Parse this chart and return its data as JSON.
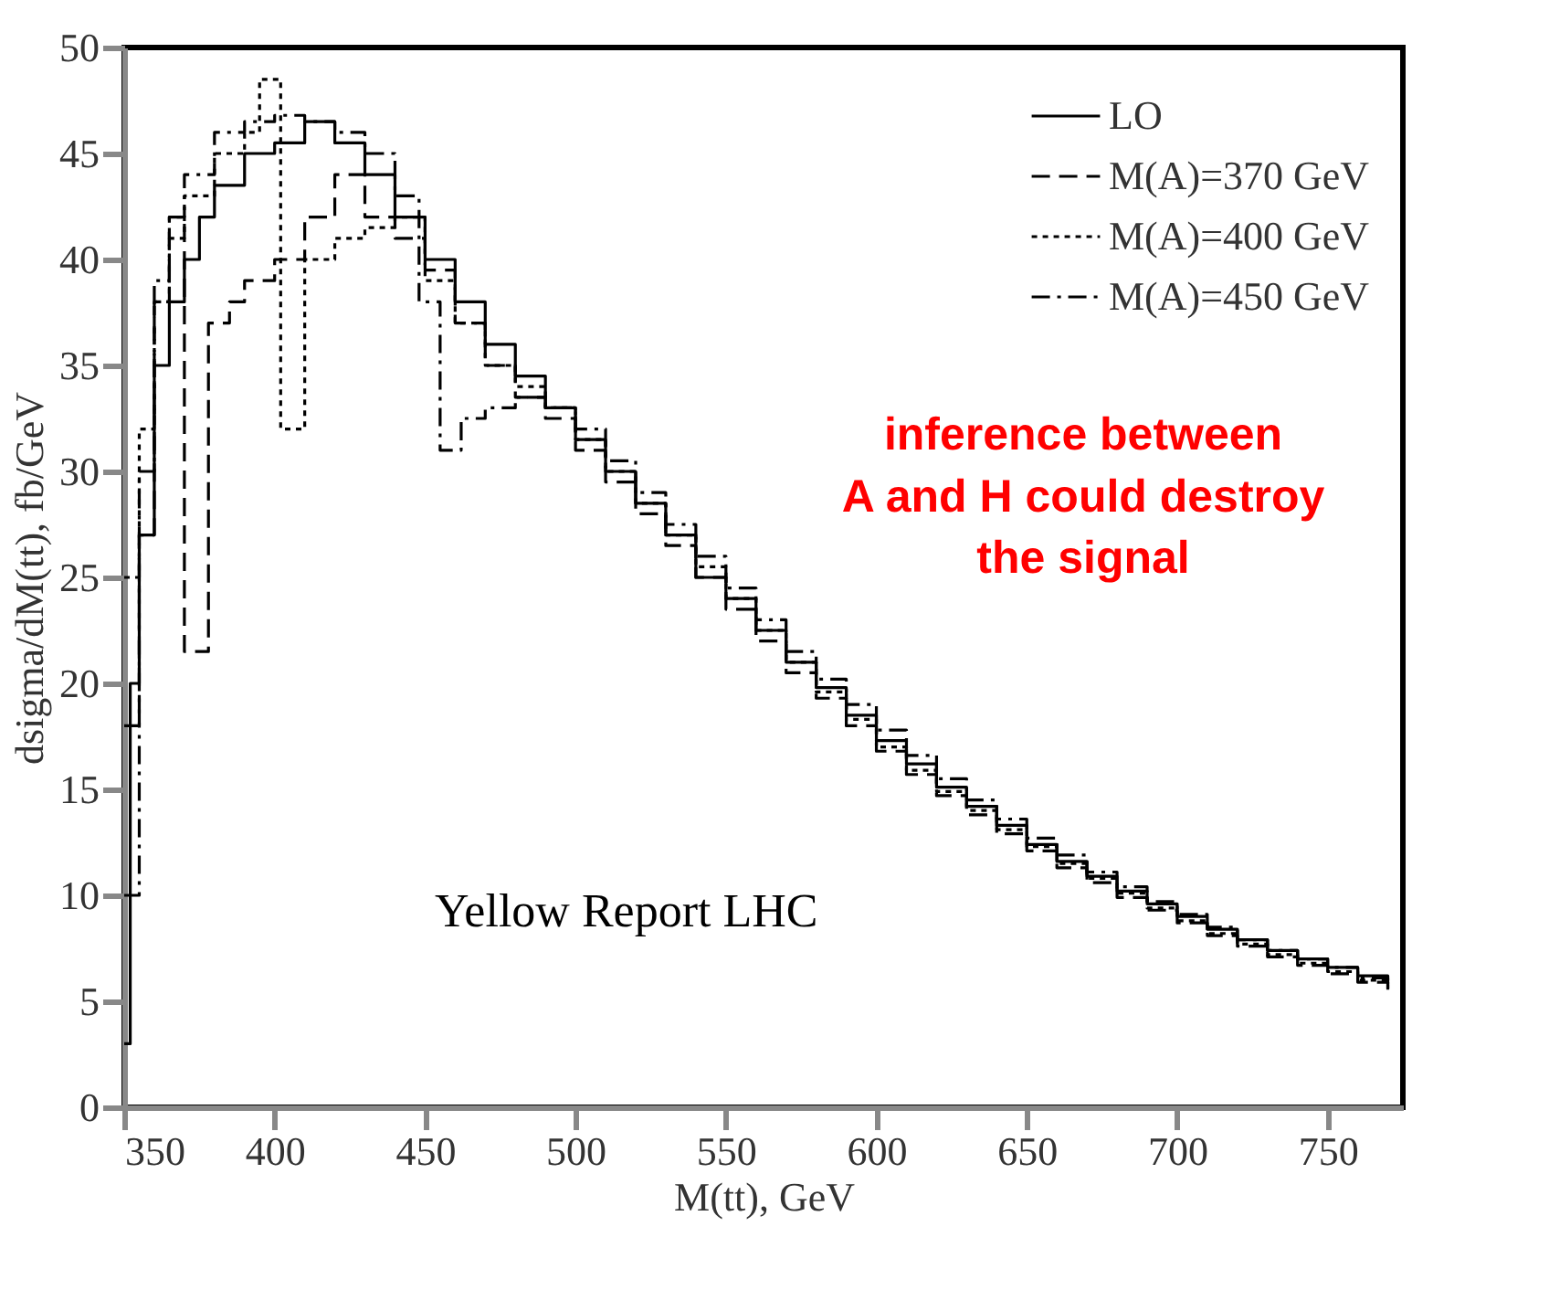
{
  "chart_data": {
    "type": "step",
    "xlabel": "M(tt), GeV",
    "ylabel": "dsigma/dM(tt), fb/GeV",
    "xlim": [
      350,
      775
    ],
    "ylim": [
      0,
      50
    ],
    "xticks": [
      350,
      400,
      450,
      500,
      550,
      600,
      650,
      700,
      750
    ],
    "yticks": [
      0,
      5,
      10,
      15,
      20,
      25,
      30,
      35,
      40,
      45,
      50
    ],
    "grid": false,
    "legend": "top right",
    "marker": "none",
    "annotations": [
      "inference between\nA and H could destroy\nthe signal",
      "Yellow Report LHC"
    ],
    "series": [
      {
        "name": "LO",
        "color": "#000000",
        "line_style": "solid",
        "x": [
          350,
          352,
          355,
          360,
          365,
          370,
          375,
          380,
          390,
          400,
          410,
          420,
          430,
          440,
          450,
          460,
          470,
          480,
          490,
          500,
          510,
          520,
          530,
          540,
          550,
          560,
          570,
          580,
          590,
          600,
          610,
          620,
          630,
          640,
          650,
          660,
          670,
          680,
          690,
          700,
          710,
          720,
          730,
          740,
          750,
          760,
          770
        ],
        "values": [
          3,
          20,
          27,
          35,
          38,
          40,
          42,
          43.5,
          45,
          45.5,
          46.5,
          45.5,
          44,
          42,
          40,
          38,
          36,
          34.5,
          33,
          31.5,
          30,
          28.5,
          27,
          25,
          24,
          22.5,
          21,
          19.8,
          18.5,
          17.3,
          16.2,
          15.1,
          14.2,
          13.3,
          12.4,
          11.6,
          10.9,
          10.2,
          9.6,
          9,
          8.4,
          7.9,
          7.4,
          7,
          6.6,
          6.2,
          5.8
        ]
      },
      {
        "name": "M(A)=370 GeV",
        "color": "#000000",
        "line_style": "dashed",
        "x": [
          350,
          355,
          360,
          365,
          370,
          378,
          385,
          390,
          400,
          410,
          420,
          430,
          440,
          450,
          460,
          470,
          480,
          490,
          500,
          510,
          520,
          530,
          540,
          550,
          560,
          570,
          580,
          590,
          600,
          610,
          620,
          630,
          640,
          650,
          660,
          670,
          680,
          690,
          700,
          710,
          720,
          730,
          740,
          750,
          760,
          770
        ],
        "values": [
          18,
          27,
          38,
          42,
          21.5,
          37,
          38,
          39,
          40,
          42,
          44,
          42,
          41,
          39.5,
          37,
          35,
          33.5,
          32.5,
          31,
          29.5,
          28,
          26.5,
          25,
          23.5,
          22,
          20.5,
          19.3,
          18,
          16.8,
          15.7,
          14.7,
          13.8,
          12.9,
          12.1,
          11.3,
          10.6,
          9.9,
          9.3,
          8.7,
          8.1,
          7.6,
          7.1,
          6.7,
          6.3,
          5.9,
          5.5
        ]
      },
      {
        "name": "M(A)=400 GeV",
        "color": "#000000",
        "line_style": "dotted",
        "x": [
          350,
          355,
          360,
          365,
          370,
          380,
          390,
          395,
          402,
          410,
          420,
          430,
          440,
          450,
          460,
          470,
          480,
          490,
          500,
          510,
          520,
          530,
          540,
          550,
          560,
          570,
          580,
          590,
          600,
          610,
          620,
          630,
          640,
          650,
          660,
          670,
          680,
          690,
          700,
          710,
          720,
          730,
          740,
          750,
          760,
          770
        ],
        "values": [
          25,
          32,
          38,
          41,
          43,
          45,
          46,
          48.5,
          32,
          40,
          41,
          41.5,
          42,
          39,
          37,
          35,
          34,
          33,
          31.5,
          30,
          28.5,
          27,
          25.5,
          24,
          22.5,
          21,
          19.6,
          18.3,
          17,
          15.9,
          14.9,
          14,
          13.1,
          12.3,
          11.5,
          10.8,
          10.1,
          9.4,
          8.8,
          8.2,
          7.7,
          7.2,
          6.8,
          6.4,
          6,
          5.6
        ]
      },
      {
        "name": "M(A)=450 GeV",
        "color": "#000000",
        "line_style": "dashdot",
        "x": [
          350,
          355,
          360,
          365,
          370,
          380,
          390,
          400,
          410,
          420,
          430,
          440,
          448,
          455,
          462,
          470,
          480,
          490,
          500,
          510,
          520,
          530,
          540,
          550,
          560,
          570,
          580,
          590,
          600,
          610,
          620,
          630,
          640,
          650,
          660,
          670,
          680,
          690,
          700,
          710,
          720,
          730,
          740,
          750,
          760,
          770
        ],
        "values": [
          10,
          30,
          39,
          42,
          44,
          46,
          46.5,
          46.8,
          46.5,
          46,
          45,
          43,
          38,
          31,
          32.5,
          33,
          33.5,
          33,
          32,
          30.5,
          29,
          27.5,
          26,
          24.5,
          23,
          21.5,
          20.2,
          19,
          17.8,
          16.6,
          15.5,
          14.5,
          13.6,
          12.7,
          11.9,
          11.1,
          10.4,
          9.7,
          9.1,
          8.5,
          7.9,
          7.4,
          7,
          6.6,
          6.1,
          5.7
        ]
      }
    ]
  }
}
